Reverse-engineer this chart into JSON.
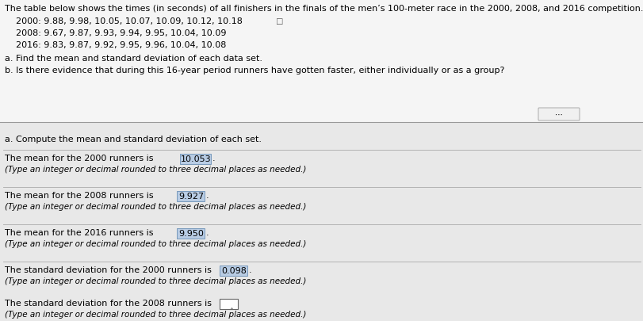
{
  "top_bg": "#f5f5f5",
  "bottom_bg": "#e8e8e8",
  "fig_bg": "#c8c8c8",
  "line1": "The table below shows the times (in seconds) of all finishers in the finals of the men’s 100-meter race in the 2000, 2008, and 2016 competition.",
  "line2": "    2000: 9.88, 9.98, 10.05, 10.07, 10.09, 10.12, 10.18",
  "line3": "    2008: 9.67, 9.87, 9.93, 9.94, 9.95, 10.04, 10.09",
  "line4": "    2016: 9.83, 9.87, 9.92, 9.95, 9.96, 10.04, 10.08",
  "line5": "a. Find the mean and standard deviation of each data set.",
  "line6": "b. Is there evidence that during this 16-year period runners have gotten faster, either individually or as a group?",
  "section_a_header": "a. Compute the mean and standard deviation of each set.",
  "mean2000_label": "The mean for the 2000 runners is ",
  "mean2000_value": "10.053",
  "mean2000_period": ".",
  "mean2000_sub": "(Type an integer or decimal rounded to three decimal places as needed.)",
  "mean2008_label": "The mean for the 2008 runners is ",
  "mean2008_value": "9.927",
  "mean2008_period": ".",
  "mean2008_sub": "(Type an integer or decimal rounded to three decimal places as needed.)",
  "mean2016_label": "The mean for the 2016 runners is ",
  "mean2016_value": "9.950",
  "mean2016_period": ".",
  "mean2016_sub": "(Type an integer or decimal rounded to three decimal places as needed.)",
  "std2000_label": "The standard deviation for the 2000 runners is ",
  "std2000_value": "0.098",
  "std2000_period": ".",
  "std2000_sub": "(Type an integer or decimal rounded to three decimal places as needed.)",
  "std2008_label": "The standard deviation for the 2008 runners is ",
  "std2008_sub": "(Type an integer or decimal rounded to three decimal places as needed.)",
  "box_fill": "#b8cce4",
  "box_edge": "#7799bb",
  "empty_box_fill": "#ffffff",
  "empty_box_edge": "#666666"
}
